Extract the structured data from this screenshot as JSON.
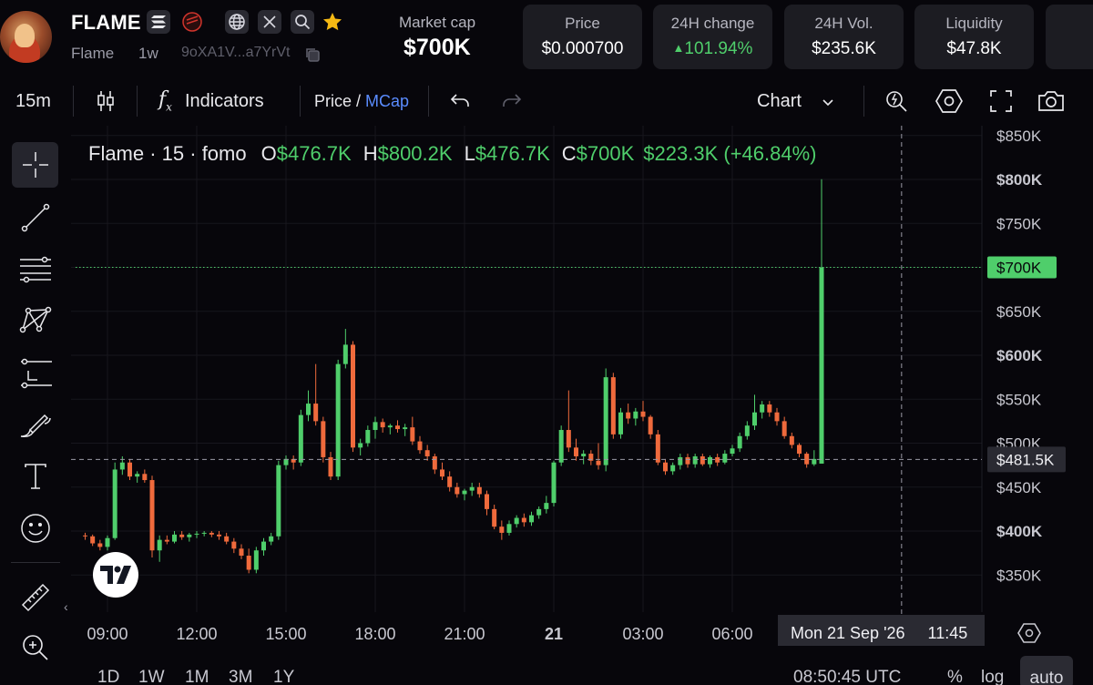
{
  "header": {
    "token_name": "FLAME",
    "token_sub": "Flame",
    "timeframe": "1w",
    "address": "9oXA1V...a7YrVt",
    "market_cap_label": "Market cap",
    "market_cap_value": "$700K",
    "stats": [
      {
        "label": "Price",
        "value": "$0.000700"
      },
      {
        "label": "24H change",
        "value": "101.94%"
      },
      {
        "label": "24H Vol.",
        "value": "$235.6K"
      },
      {
        "label": "Liquidity",
        "value": "$47.8K"
      }
    ]
  },
  "toolbar": {
    "interval": "15m",
    "indicators": "Indicators",
    "price": "Price",
    "slash": " / ",
    "mcap": "MCap",
    "chart": "Chart"
  },
  "legend": {
    "title": "Flame · 15 · fomo",
    "o_label": "O",
    "o_value": "$476.7K",
    "h_label": "H",
    "h_value": "$800.2K",
    "l_label": "L",
    "l_value": "$476.7K",
    "c_label": "C",
    "c_value": "$700K",
    "change": "$223.3K (+46.84%)"
  },
  "crosshair": {
    "price_label": "$481.5K",
    "time_label": "Mon 21 Sep '26     11:45"
  },
  "bottom": {
    "ranges": [
      "1D",
      "1W",
      "1M",
      "3M",
      "1Y"
    ],
    "clock": "08:50:45 UTC",
    "pct": "%",
    "log": "log",
    "auto": "auto"
  },
  "colors": {
    "up": "#4fce6b",
    "down": "#ef6a3c",
    "accent_blue": "#5a8cff",
    "background": "#07060b"
  },
  "chart_data": {
    "type": "candlestick",
    "y_ticks": [
      "$850K",
      "$800K",
      "$750K",
      "$700K",
      "$650K",
      "$600K",
      "$550K",
      "$500K",
      "$450K",
      "$400K",
      "$350K"
    ],
    "y_tick_values": [
      850,
      800,
      750,
      700,
      650,
      600,
      550,
      500,
      450,
      400,
      350
    ],
    "ylim": [
      310,
      860
    ],
    "x_ticks": [
      "09:00",
      "12:00",
      "15:00",
      "18:00",
      "21:00",
      "21",
      "03:00",
      "06:00"
    ],
    "x_tick_hours": [
      9,
      12,
      15,
      18,
      21,
      24,
      27,
      30
    ],
    "last_price_label": "$700K",
    "last_price": 700,
    "crosshair_price": 481.5,
    "crosshair_hour": 32.75,
    "candles": [
      {
        "t": 8.25,
        "o": 395,
        "h": 398,
        "l": 390,
        "c": 394
      },
      {
        "t": 8.5,
        "o": 394,
        "h": 396,
        "l": 383,
        "c": 386
      },
      {
        "t": 8.75,
        "o": 386,
        "h": 390,
        "l": 378,
        "c": 382
      },
      {
        "t": 9.0,
        "o": 382,
        "h": 395,
        "l": 378,
        "c": 392
      },
      {
        "t": 9.25,
        "o": 392,
        "h": 478,
        "l": 390,
        "c": 470
      },
      {
        "t": 9.5,
        "o": 470,
        "h": 485,
        "l": 464,
        "c": 478
      },
      {
        "t": 9.75,
        "o": 478,
        "h": 482,
        "l": 458,
        "c": 462
      },
      {
        "t": 10.0,
        "o": 462,
        "h": 468,
        "l": 455,
        "c": 465
      },
      {
        "t": 10.25,
        "o": 465,
        "h": 470,
        "l": 455,
        "c": 458
      },
      {
        "t": 10.5,
        "o": 458,
        "h": 463,
        "l": 370,
        "c": 378
      },
      {
        "t": 10.75,
        "o": 378,
        "h": 395,
        "l": 365,
        "c": 390
      },
      {
        "t": 11.0,
        "o": 390,
        "h": 395,
        "l": 385,
        "c": 388
      },
      {
        "t": 11.25,
        "o": 388,
        "h": 400,
        "l": 386,
        "c": 396
      },
      {
        "t": 11.5,
        "o": 396,
        "h": 400,
        "l": 390,
        "c": 393
      },
      {
        "t": 11.75,
        "o": 393,
        "h": 398,
        "l": 388,
        "c": 396
      },
      {
        "t": 12.0,
        "o": 396,
        "h": 400,
        "l": 392,
        "c": 397
      },
      {
        "t": 12.25,
        "o": 397,
        "h": 400,
        "l": 394,
        "c": 398
      },
      {
        "t": 12.5,
        "o": 398,
        "h": 400,
        "l": 393,
        "c": 396
      },
      {
        "t": 12.75,
        "o": 396,
        "h": 400,
        "l": 390,
        "c": 394
      },
      {
        "t": 13.0,
        "o": 394,
        "h": 398,
        "l": 385,
        "c": 388
      },
      {
        "t": 13.25,
        "o": 388,
        "h": 392,
        "l": 375,
        "c": 380
      },
      {
        "t": 13.5,
        "o": 380,
        "h": 385,
        "l": 368,
        "c": 372
      },
      {
        "t": 13.75,
        "o": 372,
        "h": 380,
        "l": 352,
        "c": 356
      },
      {
        "t": 14.0,
        "o": 356,
        "h": 382,
        "l": 352,
        "c": 378
      },
      {
        "t": 14.25,
        "o": 378,
        "h": 392,
        "l": 372,
        "c": 388
      },
      {
        "t": 14.5,
        "o": 388,
        "h": 398,
        "l": 384,
        "c": 394
      },
      {
        "t": 14.75,
        "o": 394,
        "h": 480,
        "l": 390,
        "c": 475
      },
      {
        "t": 15.0,
        "o": 475,
        "h": 486,
        "l": 470,
        "c": 482
      },
      {
        "t": 15.25,
        "o": 482,
        "h": 486,
        "l": 470,
        "c": 478
      },
      {
        "t": 15.5,
        "o": 478,
        "h": 538,
        "l": 474,
        "c": 532
      },
      {
        "t": 15.75,
        "o": 532,
        "h": 560,
        "l": 525,
        "c": 545
      },
      {
        "t": 16.0,
        "o": 545,
        "h": 590,
        "l": 520,
        "c": 525
      },
      {
        "t": 16.25,
        "o": 525,
        "h": 530,
        "l": 478,
        "c": 484
      },
      {
        "t": 16.5,
        "o": 484,
        "h": 490,
        "l": 458,
        "c": 462
      },
      {
        "t": 16.75,
        "o": 462,
        "h": 595,
        "l": 458,
        "c": 590
      },
      {
        "t": 17.0,
        "o": 590,
        "h": 630,
        "l": 585,
        "c": 612
      },
      {
        "t": 17.25,
        "o": 612,
        "h": 616,
        "l": 490,
        "c": 495
      },
      {
        "t": 17.5,
        "o": 495,
        "h": 505,
        "l": 486,
        "c": 500
      },
      {
        "t": 17.75,
        "o": 500,
        "h": 520,
        "l": 496,
        "c": 515
      },
      {
        "t": 18.0,
        "o": 515,
        "h": 530,
        "l": 505,
        "c": 524
      },
      {
        "t": 18.25,
        "o": 524,
        "h": 528,
        "l": 512,
        "c": 518
      },
      {
        "t": 18.5,
        "o": 518,
        "h": 522,
        "l": 510,
        "c": 520
      },
      {
        "t": 18.75,
        "o": 520,
        "h": 526,
        "l": 512,
        "c": 516
      },
      {
        "t": 19.0,
        "o": 516,
        "h": 522,
        "l": 508,
        "c": 518
      },
      {
        "t": 19.25,
        "o": 518,
        "h": 530,
        "l": 498,
        "c": 502
      },
      {
        "t": 19.5,
        "o": 502,
        "h": 508,
        "l": 488,
        "c": 492
      },
      {
        "t": 19.75,
        "o": 492,
        "h": 498,
        "l": 480,
        "c": 485
      },
      {
        "t": 20.0,
        "o": 485,
        "h": 488,
        "l": 465,
        "c": 470
      },
      {
        "t": 20.25,
        "o": 470,
        "h": 478,
        "l": 458,
        "c": 462
      },
      {
        "t": 20.5,
        "o": 462,
        "h": 468,
        "l": 445,
        "c": 450
      },
      {
        "t": 20.75,
        "o": 450,
        "h": 455,
        "l": 438,
        "c": 442
      },
      {
        "t": 21.0,
        "o": 442,
        "h": 448,
        "l": 435,
        "c": 446
      },
      {
        "t": 21.25,
        "o": 446,
        "h": 455,
        "l": 440,
        "c": 450
      },
      {
        "t": 21.5,
        "o": 450,
        "h": 455,
        "l": 438,
        "c": 442
      },
      {
        "t": 21.75,
        "o": 442,
        "h": 446,
        "l": 418,
        "c": 425
      },
      {
        "t": 22.0,
        "o": 425,
        "h": 430,
        "l": 402,
        "c": 405
      },
      {
        "t": 22.25,
        "o": 405,
        "h": 412,
        "l": 390,
        "c": 398
      },
      {
        "t": 22.5,
        "o": 398,
        "h": 412,
        "l": 395,
        "c": 408
      },
      {
        "t": 22.75,
        "o": 408,
        "h": 418,
        "l": 404,
        "c": 415
      },
      {
        "t": 23.0,
        "o": 415,
        "h": 420,
        "l": 405,
        "c": 410
      },
      {
        "t": 23.25,
        "o": 410,
        "h": 422,
        "l": 406,
        "c": 418
      },
      {
        "t": 23.5,
        "o": 418,
        "h": 428,
        "l": 414,
        "c": 425
      },
      {
        "t": 23.75,
        "o": 425,
        "h": 440,
        "l": 420,
        "c": 432
      },
      {
        "t": 24.0,
        "o": 432,
        "h": 480,
        "l": 428,
        "c": 478
      },
      {
        "t": 24.25,
        "o": 478,
        "h": 520,
        "l": 474,
        "c": 515
      },
      {
        "t": 24.5,
        "o": 515,
        "h": 560,
        "l": 490,
        "c": 495
      },
      {
        "t": 24.75,
        "o": 495,
        "h": 505,
        "l": 480,
        "c": 485
      },
      {
        "t": 25.0,
        "o": 485,
        "h": 492,
        "l": 476,
        "c": 488
      },
      {
        "t": 25.25,
        "o": 488,
        "h": 492,
        "l": 475,
        "c": 480
      },
      {
        "t": 25.5,
        "o": 480,
        "h": 500,
        "l": 470,
        "c": 475
      },
      {
        "t": 25.75,
        "o": 475,
        "h": 585,
        "l": 468,
        "c": 575
      },
      {
        "t": 26.0,
        "o": 575,
        "h": 580,
        "l": 505,
        "c": 510
      },
      {
        "t": 26.25,
        "o": 510,
        "h": 540,
        "l": 505,
        "c": 535
      },
      {
        "t": 26.5,
        "o": 535,
        "h": 545,
        "l": 522,
        "c": 528
      },
      {
        "t": 26.75,
        "o": 528,
        "h": 540,
        "l": 520,
        "c": 536
      },
      {
        "t": 27.0,
        "o": 536,
        "h": 548,
        "l": 525,
        "c": 530
      },
      {
        "t": 27.25,
        "o": 530,
        "h": 532,
        "l": 505,
        "c": 510
      },
      {
        "t": 27.5,
        "o": 510,
        "h": 515,
        "l": 475,
        "c": 478
      },
      {
        "t": 27.75,
        "o": 478,
        "h": 482,
        "l": 464,
        "c": 468
      },
      {
        "t": 28.0,
        "o": 468,
        "h": 478,
        "l": 464,
        "c": 475
      },
      {
        "t": 28.25,
        "o": 475,
        "h": 488,
        "l": 470,
        "c": 484
      },
      {
        "t": 28.5,
        "o": 484,
        "h": 488,
        "l": 472,
        "c": 476
      },
      {
        "t": 28.75,
        "o": 476,
        "h": 488,
        "l": 472,
        "c": 485
      },
      {
        "t": 29.0,
        "o": 485,
        "h": 488,
        "l": 474,
        "c": 476
      },
      {
        "t": 29.25,
        "o": 476,
        "h": 486,
        "l": 472,
        "c": 484
      },
      {
        "t": 29.5,
        "o": 484,
        "h": 488,
        "l": 474,
        "c": 478
      },
      {
        "t": 29.75,
        "o": 478,
        "h": 492,
        "l": 476,
        "c": 488
      },
      {
        "t": 30.0,
        "o": 488,
        "h": 498,
        "l": 485,
        "c": 494
      },
      {
        "t": 30.25,
        "o": 494,
        "h": 512,
        "l": 490,
        "c": 508
      },
      {
        "t": 30.5,
        "o": 508,
        "h": 525,
        "l": 504,
        "c": 520
      },
      {
        "t": 30.75,
        "o": 520,
        "h": 555,
        "l": 515,
        "c": 535
      },
      {
        "t": 31.0,
        "o": 535,
        "h": 548,
        "l": 528,
        "c": 544
      },
      {
        "t": 31.25,
        "o": 544,
        "h": 548,
        "l": 530,
        "c": 535
      },
      {
        "t": 31.5,
        "o": 535,
        "h": 540,
        "l": 520,
        "c": 525
      },
      {
        "t": 31.75,
        "o": 525,
        "h": 530,
        "l": 505,
        "c": 508
      },
      {
        "t": 32.0,
        "o": 508,
        "h": 512,
        "l": 494,
        "c": 498
      },
      {
        "t": 32.25,
        "o": 498,
        "h": 500,
        "l": 484,
        "c": 488
      },
      {
        "t": 32.5,
        "o": 488,
        "h": 490,
        "l": 472,
        "c": 476
      },
      {
        "t": 32.75,
        "o": 476,
        "h": 492,
        "l": 474,
        "c": 482
      },
      {
        "t": 33.0,
        "o": 476.7,
        "h": 800.2,
        "l": 476.7,
        "c": 700
      }
    ]
  }
}
